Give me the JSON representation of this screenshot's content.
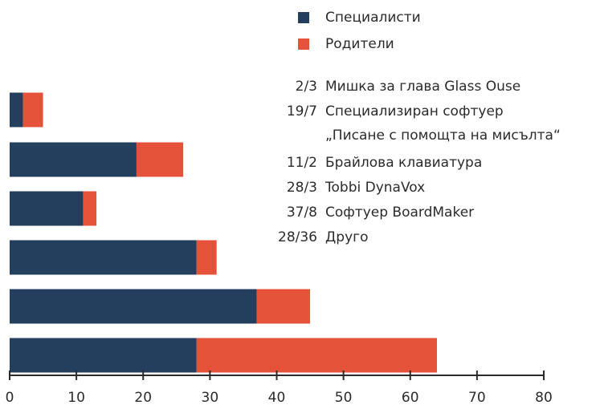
{
  "chart_data": {
    "type": "stacked-barh",
    "categories": [
      "Мишка за глава Glass Ouse",
      "Специализиран софтуер\n„Писане с помощта на мисълта“",
      "Брайлова клавиатура",
      "Tobbi DynaVox",
      "Софтуер BoardMaker",
      "Друго"
    ],
    "value_labels": [
      "2/3",
      "19/7",
      "11/2",
      "28/3",
      "37/8",
      "28/36"
    ],
    "series": [
      {
        "name": "Специалисти",
        "color": "#243f5d",
        "values": [
          2,
          19,
          11,
          28,
          37,
          28
        ]
      },
      {
        "name": "Родители",
        "color": "#e4523a",
        "values": [
          3,
          7,
          2,
          3,
          8,
          36
        ]
      }
    ],
    "xlim": [
      0,
      80
    ],
    "xticks": [
      0,
      10,
      20,
      30,
      40,
      50,
      60,
      70,
      80
    ],
    "grid": false
  }
}
